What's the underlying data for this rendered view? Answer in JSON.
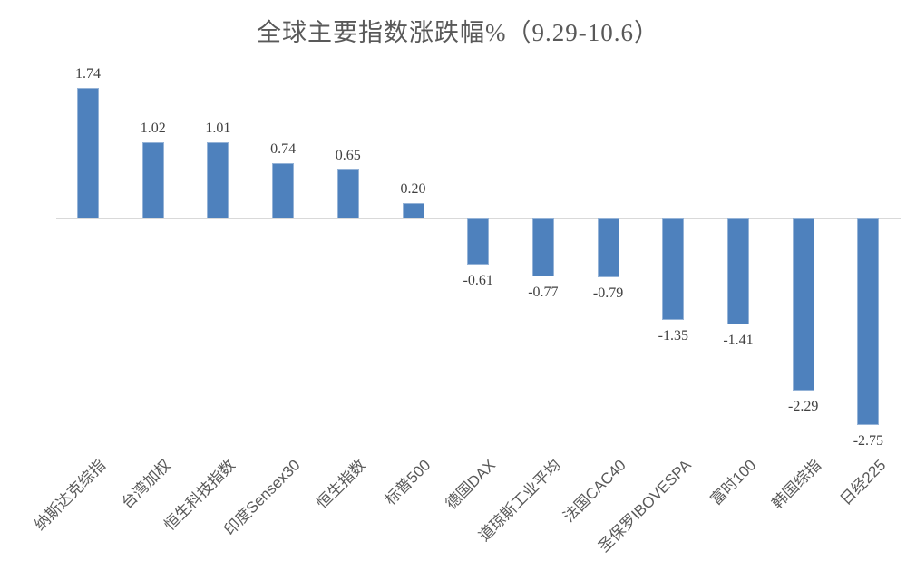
{
  "chart_data": {
    "type": "bar",
    "title": "全球主要指数涨跌幅%（9.29-10.6）",
    "categories": [
      "纳斯达克综指",
      "台湾加权",
      "恒生科技指数",
      "印度Sensex30",
      "恒生指数",
      "标普500",
      "德国DAX",
      "道琼斯工业平均",
      "法国CAC40",
      "圣保罗IBOVESPA",
      "富时100",
      "韩国综指",
      "日经225"
    ],
    "values": [
      1.74,
      1.02,
      1.01,
      0.74,
      0.65,
      0.2,
      -0.61,
      -0.77,
      -0.79,
      -1.35,
      -1.41,
      -2.29,
      -2.75
    ],
    "value_labels": [
      "1.74",
      "1.02",
      "1.01",
      "0.74",
      "0.65",
      "0.20",
      "-0.61",
      "-0.77",
      "-0.79",
      "-1.35",
      "-1.41",
      "-2.29",
      "-2.75"
    ],
    "xlabel": "",
    "ylabel": "",
    "ylim": [
      -3,
      2
    ],
    "grid": false,
    "legend": false,
    "colors": {
      "bar_fill": "#4e81bd",
      "bar_border": "#95b3d7",
      "axis_line": "#d9d9d9",
      "title_text": "#595959",
      "value_label_text": "#404040",
      "category_label_text": "#595959",
      "background": "#ffffff"
    }
  }
}
